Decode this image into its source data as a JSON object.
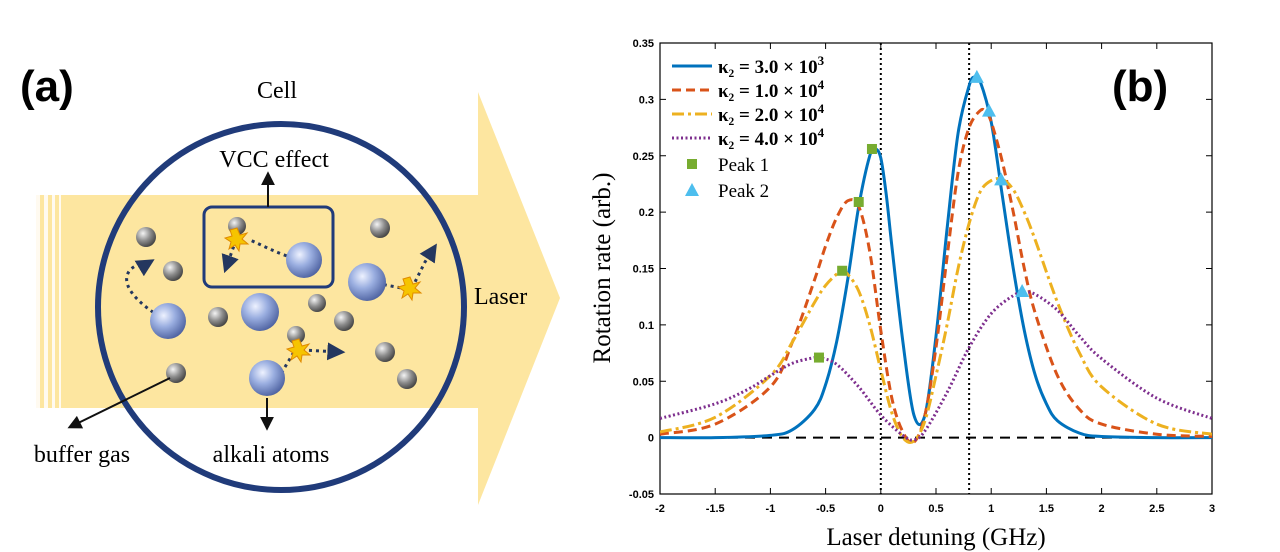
{
  "panel_a": {
    "label": "(a)",
    "cell_label": "Cell",
    "vcc_label": "VCC effect",
    "laser_label": "Laser",
    "buffer_label": "buffer gas",
    "alkali_label": "alkali atoms",
    "colors": {
      "beam": "#fde6a0",
      "cell_ring": "#203b7a",
      "alkali": "#6f86c8",
      "buffer": "#6d6d6d",
      "collision": "#f6c400"
    }
  },
  "chart_data": {
    "type": "line",
    "panel_label": "(b)",
    "xlabel": "Laser detuning (GHz)",
    "ylabel": "Rotation rate (arb.)",
    "xlim": [
      -2,
      3
    ],
    "ylim": [
      -0.05,
      0.35
    ],
    "xticks": [
      "-2",
      "-1.5",
      "-1",
      "-0.5",
      "0",
      "0.5",
      "1",
      "1.5",
      "2",
      "2.5",
      "3"
    ],
    "yticks": [
      "-0.05",
      "0",
      "0.05",
      "0.1",
      "0.15",
      "0.2",
      "0.25",
      "0.3",
      "0.35"
    ],
    "grid": false,
    "legend_position": "top-left",
    "vlines": [
      0,
      0.8
    ],
    "hline": 0,
    "series": [
      {
        "name": "κ₂ = 3.0 × 10³",
        "legend_main": "κ₂ = 3.0 × 10",
        "legend_exp": "3",
        "color": "#0072bd",
        "style": "solid",
        "x": [
          -2.0,
          -1.5,
          -1.0,
          -0.8,
          -0.6,
          -0.5,
          -0.4,
          -0.3,
          -0.2,
          -0.1,
          -0.05,
          0.0,
          0.05,
          0.1,
          0.2,
          0.3,
          0.4,
          0.5,
          0.6,
          0.7,
          0.8,
          0.85,
          0.9,
          1.0,
          1.1,
          1.2,
          1.3,
          1.4,
          1.5,
          1.6,
          1.8,
          2.0,
          2.5,
          3.0
        ],
        "y": [
          0.0,
          0.0,
          0.002,
          0.007,
          0.025,
          0.047,
          0.085,
          0.14,
          0.205,
          0.25,
          0.256,
          0.248,
          0.215,
          0.17,
          0.085,
          0.02,
          0.02,
          0.09,
          0.185,
          0.27,
          0.312,
          0.32,
          0.316,
          0.28,
          0.215,
          0.15,
          0.095,
          0.055,
          0.03,
          0.015,
          0.004,
          0.001,
          0.0,
          0.0
        ]
      },
      {
        "name": "κ₂ = 1.0 × 10⁴",
        "legend_main": "κ₂ = 1.0 × 10",
        "legend_exp": "4",
        "color": "#d95319",
        "style": "dashed",
        "x": [
          -2.0,
          -1.5,
          -1.0,
          -0.8,
          -0.6,
          -0.5,
          -0.4,
          -0.3,
          -0.2,
          -0.1,
          0.0,
          0.1,
          0.2,
          0.3,
          0.4,
          0.5,
          0.6,
          0.7,
          0.8,
          0.9,
          0.95,
          1.0,
          1.1,
          1.2,
          1.3,
          1.4,
          1.6,
          1.8,
          2.0,
          2.5,
          3.0
        ],
        "y": [
          0.003,
          0.012,
          0.045,
          0.085,
          0.14,
          0.17,
          0.195,
          0.21,
          0.205,
          0.165,
          0.095,
          0.035,
          0.005,
          -0.004,
          0.02,
          0.08,
          0.16,
          0.235,
          0.275,
          0.29,
          0.289,
          0.28,
          0.245,
          0.2,
          0.15,
          0.11,
          0.055,
          0.025,
          0.012,
          0.003,
          0.001
        ]
      },
      {
        "name": "κ₂ = 2.0 × 10⁴",
        "legend_main": "κ₂ = 2.0 × 10",
        "legend_exp": "4",
        "color": "#edb120",
        "style": "dashdot",
        "x": [
          -2.0,
          -1.5,
          -1.0,
          -0.8,
          -0.6,
          -0.5,
          -0.4,
          -0.35,
          -0.3,
          -0.2,
          -0.1,
          0.0,
          0.1,
          0.2,
          0.3,
          0.4,
          0.5,
          0.6,
          0.7,
          0.8,
          0.9,
          1.0,
          1.1,
          1.2,
          1.3,
          1.4,
          1.6,
          1.8,
          2.0,
          2.5,
          3.0
        ],
        "y": [
          0.005,
          0.018,
          0.055,
          0.085,
          0.12,
          0.135,
          0.145,
          0.148,
          0.145,
          0.13,
          0.1,
          0.06,
          0.022,
          0.0,
          -0.003,
          0.015,
          0.055,
          0.1,
          0.15,
          0.19,
          0.218,
          0.228,
          0.229,
          0.22,
          0.2,
          0.175,
          0.12,
          0.075,
          0.045,
          0.012,
          0.003
        ]
      },
      {
        "name": "κ₂ = 4.0 × 10⁴",
        "legend_main": "κ₂ = 4.0 × 10",
        "legend_exp": "4",
        "color": "#7e2f8e",
        "style": "dotted",
        "x": [
          -2.0,
          -1.5,
          -1.2,
          -1.0,
          -0.8,
          -0.6,
          -0.55,
          -0.4,
          -0.2,
          0.0,
          0.2,
          0.3,
          0.4,
          0.6,
          0.8,
          1.0,
          1.2,
          1.3,
          1.4,
          1.6,
          1.8,
          2.0,
          2.5,
          3.0
        ],
        "y": [
          0.017,
          0.03,
          0.043,
          0.055,
          0.066,
          0.071,
          0.071,
          0.065,
          0.045,
          0.02,
          0.002,
          -0.002,
          0.006,
          0.04,
          0.08,
          0.11,
          0.126,
          0.129,
          0.127,
          0.113,
          0.09,
          0.07,
          0.035,
          0.017
        ]
      }
    ],
    "peak1": {
      "name": "Peak 1",
      "color": "#77ac30",
      "x": [
        -0.08,
        -0.2,
        -0.35,
        -0.56
      ],
      "y": [
        0.256,
        0.209,
        0.148,
        0.071
      ]
    },
    "peak2": {
      "name": "Peak 2",
      "color": "#4dbeee",
      "x": [
        0.87,
        0.98,
        1.09,
        1.28
      ],
      "y": [
        0.32,
        0.29,
        0.229,
        0.13
      ]
    }
  }
}
